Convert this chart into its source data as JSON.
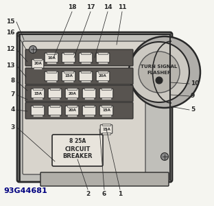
{
  "background_color": "#f5f5f0",
  "dark": "#282828",
  "mid": "#686868",
  "light": "#b8b8b8",
  "catalog_num": "93G44681",
  "catalog_color": "#000080",
  "turn_signal_lines": [
    "TURN SIGNAL",
    "FLASHER"
  ],
  "circuit_breaker_lines": [
    "8 25A",
    "CIRCUIT",
    "BREAKER"
  ],
  "left_labels": [
    [
      "15",
      268
    ],
    [
      "16",
      252
    ],
    [
      "12",
      228
    ],
    [
      "13",
      205
    ],
    [
      "8",
      182
    ],
    [
      "7",
      162
    ],
    [
      "4",
      140
    ],
    [
      "3",
      115
    ]
  ],
  "top_labels": [
    [
      "18",
      105
    ],
    [
      "17",
      130
    ],
    [
      "14",
      153
    ],
    [
      "11",
      175
    ]
  ],
  "right_labels": [
    [
      "10",
      178
    ],
    [
      "9",
      160
    ],
    [
      "5",
      140
    ]
  ],
  "bottom_labels": [
    [
      "2",
      128
    ],
    [
      "6",
      152
    ],
    [
      "1",
      175
    ]
  ],
  "fig_w": 3.12,
  "fig_h": 3.0,
  "dpi": 100
}
